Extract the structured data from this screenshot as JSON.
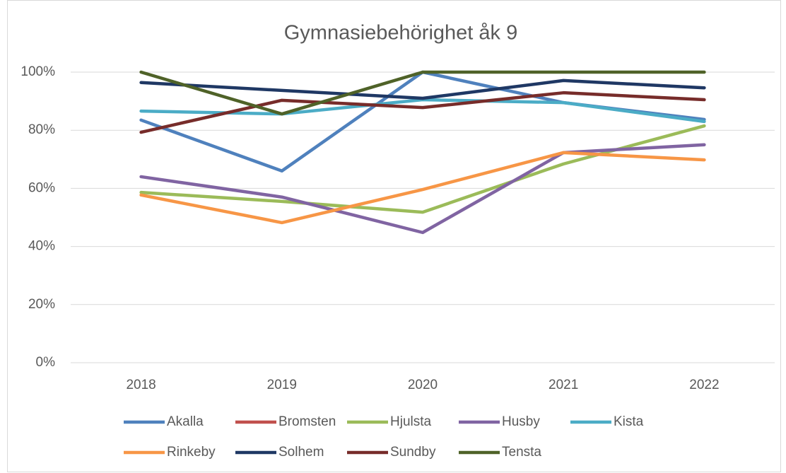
{
  "chart_data": {
    "type": "line",
    "title": "Gymnasiebehörighet åk 9",
    "categories": [
      "2018",
      "2019",
      "2020",
      "2021",
      "2022"
    ],
    "series": [
      {
        "name": "Akalla",
        "color": "#4f81bd",
        "values": [
          83.5,
          66,
          100,
          89.5,
          83.7
        ]
      },
      {
        "name": "Bromsten",
        "color": "#c0504d",
        "values": [
          null,
          null,
          null,
          null,
          null
        ]
      },
      {
        "name": "Hjulsta",
        "color": "#9bbb59",
        "values": [
          58.6,
          55.5,
          51.8,
          68.4,
          81.5
        ]
      },
      {
        "name": "Husby",
        "color": "#8064a2",
        "values": [
          64,
          57,
          44.8,
          72.3,
          75
        ]
      },
      {
        "name": "Kista",
        "color": "#4bacc6",
        "values": [
          86.6,
          85.6,
          90.5,
          89.5,
          83
        ]
      },
      {
        "name": "Rinkeby",
        "color": "#f79646",
        "values": [
          57.7,
          48.2,
          59.6,
          72.3,
          69.8
        ]
      },
      {
        "name": "Solhem",
        "color": "#1f3864",
        "values": [
          96.4,
          93.7,
          91,
          97.1,
          94.6
        ]
      },
      {
        "name": "Sundby",
        "color": "#772c2a",
        "values": [
          79.3,
          90.3,
          87.8,
          92.9,
          90.5
        ]
      },
      {
        "name": "Tensta",
        "color": "#4f6228",
        "values": [
          100,
          85.6,
          100,
          100,
          100
        ]
      }
    ],
    "ylim": [
      0,
      100
    ],
    "yticks": [
      {
        "value": 0,
        "label": "0%"
      },
      {
        "value": 20,
        "label": "20%"
      },
      {
        "value": 40,
        "label": "40%"
      },
      {
        "value": 60,
        "label": "60%"
      },
      {
        "value": 80,
        "label": "80%"
      },
      {
        "value": 100,
        "label": "100%"
      }
    ],
    "grid": true
  }
}
